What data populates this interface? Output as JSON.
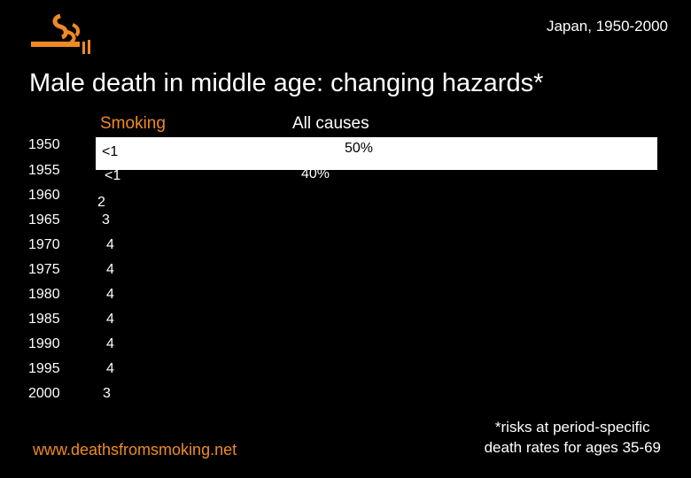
{
  "header": {
    "country": "Japan, 1950-2000"
  },
  "title": "Male death in middle age: changing hazards*",
  "columns": {
    "smoking": "Smoking",
    "all_causes": "All causes"
  },
  "colors": {
    "accent": "#f08a24",
    "background": "#000000",
    "band": "#ffffff"
  },
  "logo": {
    "icon": "cigarette-smoke-icon"
  },
  "chart_data": {
    "type": "table",
    "title": "Male death in middle age: changing hazards*",
    "years": [
      "1950",
      "1955",
      "1960",
      "1965",
      "1970",
      "1975",
      "1980",
      "1985",
      "1990",
      "1995",
      "2000"
    ],
    "smoking_labels": [
      "<1",
      "<1",
      "2",
      "3",
      "4",
      "4",
      "4",
      "4",
      "4",
      "4",
      "3"
    ],
    "all_causes_labels": [
      "50%",
      "40%",
      "",
      "",
      "",
      "",
      "",
      "",
      "",
      "",
      ""
    ]
  },
  "footer": {
    "url": "www.deathsfromsmoking.net",
    "footnote_line1": "*risks at period-specific",
    "footnote_line2": "death rates for ages 35-69"
  }
}
